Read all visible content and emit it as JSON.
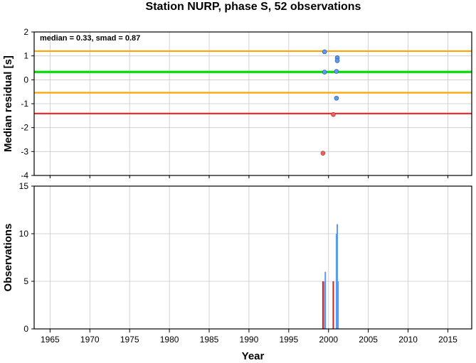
{
  "title": "Station NURP, phase S, 52 observations",
  "colors": {
    "median_line": "#00dd00",
    "smad_line": "#ffa500",
    "reference_line": "#ee2222",
    "point_normal": "#5b9bef",
    "point_outlier": "#f06060",
    "bar_normal": "#5b9bef",
    "bar_outlier": "#cc2222",
    "grid": "#c8c8c8"
  },
  "chart_data": [
    {
      "type": "scatter",
      "xlabel": "",
      "ylabel": "Median residual [s]",
      "annotation": "median = 0.33, smad = 0.87",
      "xlim": [
        1963,
        2018
      ],
      "ylim": [
        -4,
        2
      ],
      "yticks": [
        -4,
        -3,
        -2,
        -1,
        0,
        1,
        2
      ],
      "grid": true,
      "hlines": [
        {
          "value": 1.2,
          "role": "median + smad",
          "color": "#ffa500"
        },
        {
          "value": 0.33,
          "role": "median",
          "color": "#00dd00"
        },
        {
          "value": -0.54,
          "role": "median - smad",
          "color": "#ffa500"
        },
        {
          "value": -1.41,
          "role": "reference",
          "color": "#ee2222"
        }
      ],
      "points": [
        {
          "x": 1999.3,
          "y": -3.07,
          "outlier": true
        },
        {
          "x": 1999.5,
          "y": 1.17,
          "outlier": false
        },
        {
          "x": 1999.5,
          "y": 0.32,
          "outlier": false
        },
        {
          "x": 2000.6,
          "y": -1.45,
          "outlier": true
        },
        {
          "x": 2001.0,
          "y": 0.35,
          "outlier": false
        },
        {
          "x": 2001.0,
          "y": -0.77,
          "outlier": false
        },
        {
          "x": 2001.1,
          "y": 0.92,
          "outlier": false
        },
        {
          "x": 2001.1,
          "y": 0.8,
          "outlier": false
        }
      ]
    },
    {
      "type": "bar",
      "xlabel": "Year",
      "ylabel": "Observations",
      "xlim": [
        1963,
        2018
      ],
      "ylim": [
        0,
        15
      ],
      "yticks": [
        0,
        5,
        10,
        15
      ],
      "xticks": [
        1965,
        1970,
        1975,
        1980,
        1985,
        1990,
        1995,
        2000,
        2005,
        2010,
        2015
      ],
      "grid": true,
      "bars": [
        {
          "x": 1999.3,
          "value": 5,
          "outlier": true
        },
        {
          "x": 1999.5,
          "value": 5,
          "outlier": false
        },
        {
          "x": 1999.6,
          "value": 6,
          "outlier": false
        },
        {
          "x": 2000.6,
          "value": 5,
          "outlier": true
        },
        {
          "x": 2001.0,
          "value": 10,
          "outlier": false
        },
        {
          "x": 2001.1,
          "value": 11,
          "outlier": false
        },
        {
          "x": 2001.2,
          "value": 5,
          "outlier": false
        }
      ]
    }
  ]
}
